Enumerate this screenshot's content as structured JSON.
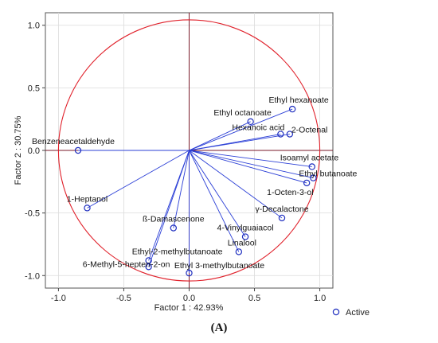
{
  "chart_data": {
    "type": "scatter",
    "xlabel": "Factor 1 : 42.93%",
    "ylabel": "Factor 2 : 30.75%",
    "xlim": [
      -1.1,
      1.1
    ],
    "ylim": [
      -1.1,
      1.1
    ],
    "xticks": [
      "-1.0",
      "-0.5",
      "0.0",
      "0.5",
      "1.0"
    ],
    "yticks": [
      "1.0",
      "0.5",
      "0.0",
      "-0.5",
      "-1.0"
    ],
    "xtick_values": [
      -1.0,
      -0.5,
      0.0,
      0.5,
      1.0
    ],
    "ytick_values": [
      1.0,
      0.5,
      0.0,
      -0.5,
      -1.0
    ],
    "grid": true,
    "unit_circle": true,
    "legend": {
      "placement": "bottom-right",
      "entries": [
        "Active"
      ]
    },
    "colors": {
      "vectors": "#2b3fd6",
      "points": "#1f2fbf",
      "circle": "#e0202a",
      "axis_lines": "#7a1a2a"
    },
    "points": [
      {
        "label": "Ethyl hexanoate",
        "x": 0.79,
        "y": 0.33
      },
      {
        "label": "Ethyl octanoate",
        "x": 0.47,
        "y": 0.23
      },
      {
        "label": "Hexanoic acid",
        "x": 0.7,
        "y": 0.13
      },
      {
        "label": "2-Octenal",
        "x": 0.77,
        "y": 0.13
      },
      {
        "label": "Benzeneacetaldehyde",
        "x": -0.85,
        "y": 0.0
      },
      {
        "label": "Isoamyl acetate",
        "x": 0.94,
        "y": -0.13
      },
      {
        "label": "Ethyl butanoate",
        "x": 0.95,
        "y": -0.22
      },
      {
        "label": "1-Octen-3-ol",
        "x": 0.9,
        "y": -0.26
      },
      {
        "label": "1-Heptanol",
        "x": -0.78,
        "y": -0.46
      },
      {
        "label": "γ-Decalactone",
        "x": 0.71,
        "y": -0.54
      },
      {
        "label": "ß-Damascenone",
        "x": -0.12,
        "y": -0.62
      },
      {
        "label": "4-Vinylguaiacol",
        "x": 0.43,
        "y": -0.69
      },
      {
        "label": "Linalool",
        "x": 0.38,
        "y": -0.81
      },
      {
        "label": "Ethyl-2-methylbutanoate",
        "x": -0.31,
        "y": -0.88
      },
      {
        "label": "6-Methyl-5-hepten-2-on",
        "x": -0.31,
        "y": -0.93
      },
      {
        "label": "Ethyl 3-methylbutanoate",
        "x": 0.0,
        "y": -0.98
      }
    ]
  },
  "caption": "(A)"
}
